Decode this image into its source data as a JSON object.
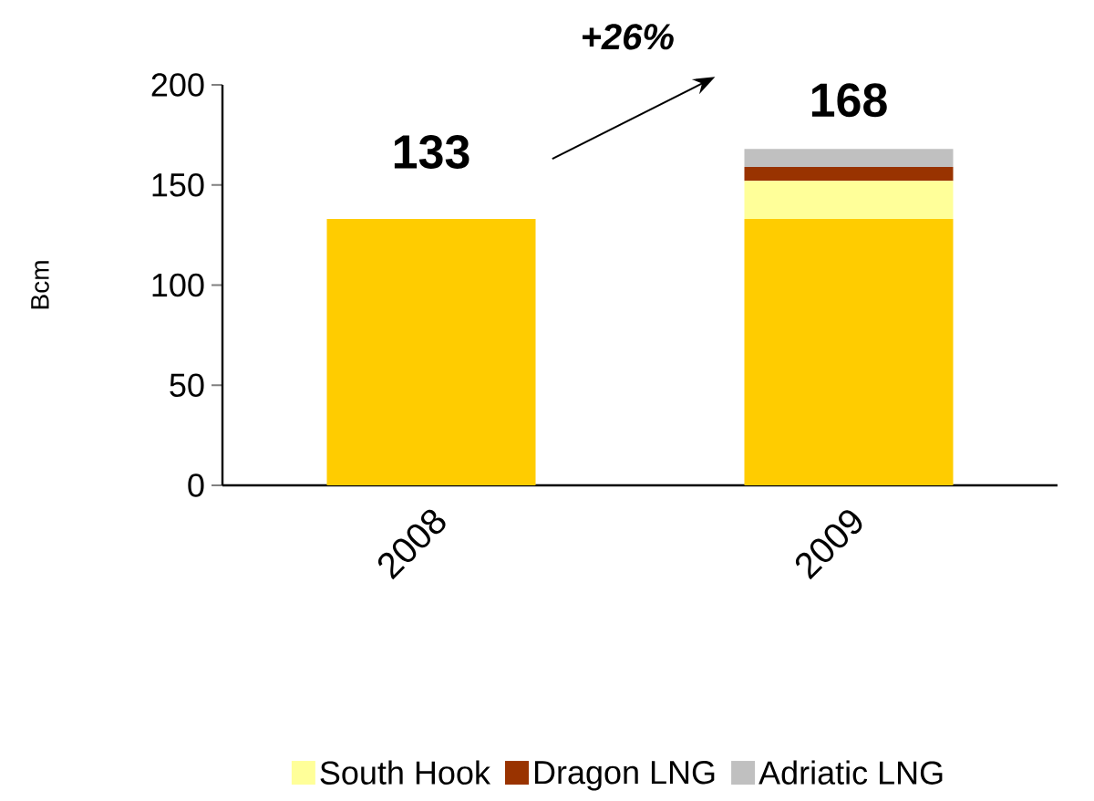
{
  "chart_data": {
    "type": "bar",
    "stacked": true,
    "categories": [
      "2008",
      "2009"
    ],
    "series": [
      {
        "color": "#ffcc00",
        "values": [
          133,
          133
        ]
      },
      {
        "name": "South Hook",
        "color": "#ffff99",
        "values": [
          0,
          19
        ]
      },
      {
        "name": "Dragon LNG",
        "color": "#993300",
        "values": [
          0,
          7
        ]
      },
      {
        "name": "Adriatic LNG",
        "color": "#c0c0c0",
        "values": [
          0,
          9
        ]
      }
    ],
    "ylabel": "Bcm",
    "ylim": [
      0,
      200
    ],
    "yticks": [
      0,
      50,
      100,
      150,
      200
    ],
    "totals": [
      "133",
      "168"
    ],
    "annotations": [
      "+26%"
    ],
    "legend": "bottom"
  }
}
